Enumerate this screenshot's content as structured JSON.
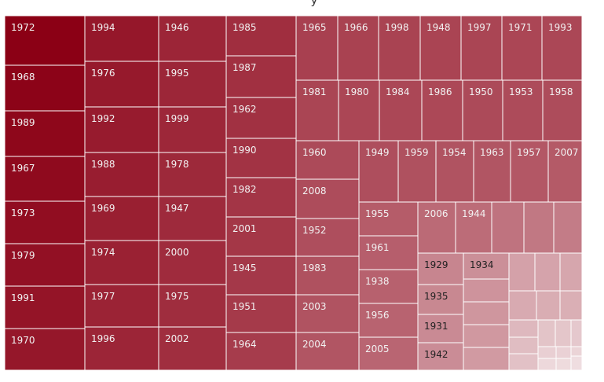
{
  "chart_data": {
    "type": "treemap",
    "title_fragment": "y",
    "colors": {
      "dark": "#8b0015",
      "light": "#f3e6e8",
      "label_light": "#f2f2f2",
      "label_dark": "#222222",
      "border": "#ffffff"
    },
    "labels": [
      "1972",
      "1968",
      "1989",
      "1967",
      "1973",
      "1979",
      "1991",
      "1970",
      "1994",
      "1976",
      "1992",
      "1988",
      "1969",
      "1974",
      "1977",
      "1996",
      "1946",
      "1995",
      "1999",
      "1978",
      "1947",
      "2000",
      "1975",
      "2002",
      "1985",
      "1987",
      "1962",
      "1990",
      "1982",
      "2001",
      "1945",
      "1951",
      "1964",
      "1965",
      "1966",
      "1998",
      "1948",
      "1997",
      "1971",
      "1993",
      "1981",
      "1980",
      "1984",
      "1986",
      "1950",
      "1953",
      "1958",
      "1960",
      "1949",
      "1959",
      "1954",
      "1963",
      "1957",
      "2007",
      "2008",
      "1952",
      "1983",
      "2003",
      "2004",
      "1955",
      "2006",
      "1944",
      "1961",
      "1938",
      "1956",
      "2005",
      "1929",
      "1934",
      "1935",
      "1931",
      "1942"
    ]
  }
}
